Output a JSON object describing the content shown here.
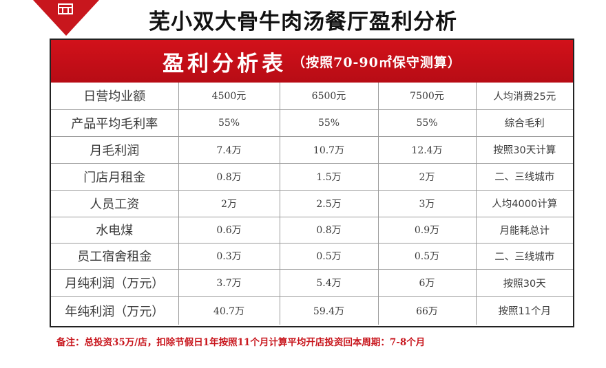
{
  "ribbon": {
    "icon": "shop-icon"
  },
  "title": "芜小双大骨牛肉汤餐厅盈利分析",
  "table": {
    "header_main": "盈利分析表",
    "header_sub": "（按照70-90㎡保守测算）",
    "rows": [
      {
        "label": "日营均业额",
        "values": [
          "4500元",
          "6500元",
          "7500元"
        ],
        "note": "人均消费25元"
      },
      {
        "label": "产品平均毛利率",
        "values": [
          "55%",
          "55%",
          "55%"
        ],
        "note": "综合毛利"
      },
      {
        "label": "月毛利润",
        "values": [
          "7.4万",
          "10.7万",
          "12.4万"
        ],
        "note": "按照30天计算"
      },
      {
        "label": "门店月租金",
        "values": [
          "0.8万",
          "1.5万",
          "2万"
        ],
        "note": "二、三线城市"
      },
      {
        "label": "人员工资",
        "values": [
          "2万",
          "2.5万",
          "3万"
        ],
        "note": "人均4000计算"
      },
      {
        "label": "水电煤",
        "values": [
          "0.6万",
          "0.8万",
          "0.9万"
        ],
        "note": "月能耗总计"
      },
      {
        "label": "员工宿舍租金",
        "values": [
          "0.3万",
          "0.5万",
          "0.5万"
        ],
        "note": "二、三线城市"
      },
      {
        "label": "月纯利润（万元）",
        "values": [
          "3.7万",
          "5.4万",
          "6万"
        ],
        "note": "按照30天"
      },
      {
        "label": "年纯利润（万元）",
        "values": [
          "40.7万",
          "59.4万",
          "66万"
        ],
        "note": "按照11个月"
      }
    ]
  },
  "footnote": "备注：总投资35万/店，扣除节假日1年按照11个月计算平均开店投资回本周期：7-8个月",
  "colors": {
    "accent_red": "#c8161d",
    "border": "#222222",
    "grid": "#9a9a9a"
  }
}
